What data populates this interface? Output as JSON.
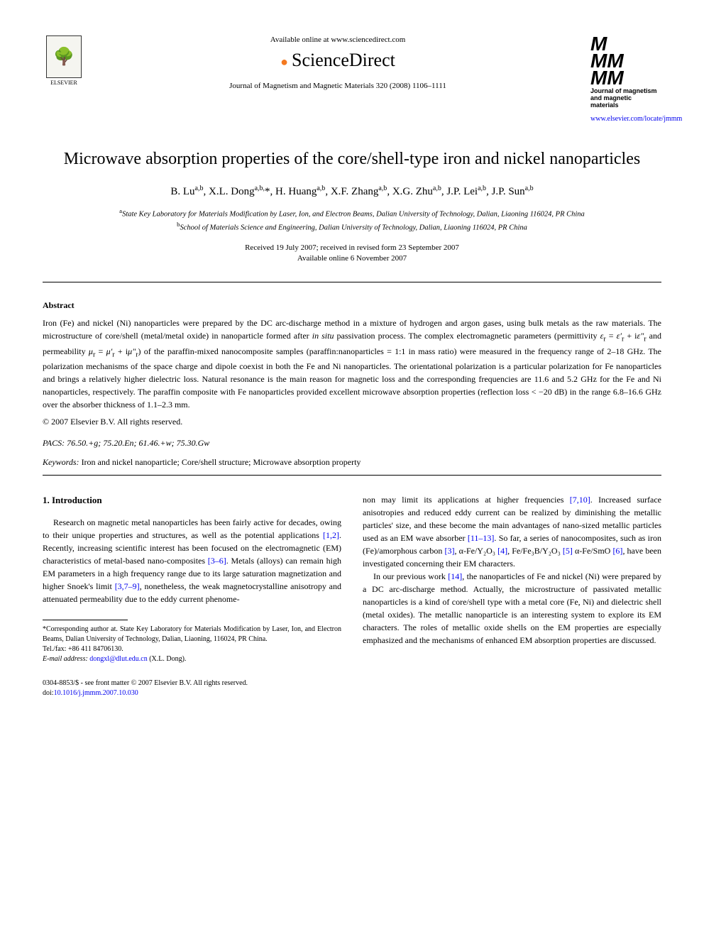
{
  "header": {
    "available_online": "Available online at www.sciencedirect.com",
    "sciencedirect": "ScienceDirect",
    "citation": "Journal of Magnetism and Magnetic Materials 320 (2008) 1106–1111",
    "elsevier": "ELSEVIER",
    "journal_mmm": "M\nMM\nMM",
    "journal_name": "Journal of magnetism and magnetic materials",
    "journal_url": "www.elsevier.com/locate/jmmm"
  },
  "title": "Microwave absorption properties of the core/shell-type iron and nickel nanoparticles",
  "authors_html": "B. Lu<sup>a,b</sup>, X.L. Dong<sup>a,b,*</sup>, H. Huang<sup>a,b</sup>, X.F. Zhang<sup>a,b</sup>, X.G. Zhu<sup>a,b</sup>, J.P. Lei<sup>a,b</sup>, J.P. Sun<sup>a,b</sup>",
  "affiliations": {
    "a": "State Key Laboratory for Materials Modification by Laser, Ion, and Electron Beams, Dalian University of Technology, Dalian, Liaoning 116024, PR China",
    "b": "School of Materials Science and Engineering, Dalian University of Technology, Dalian, Liaoning 116024, PR China"
  },
  "dates": {
    "received": "Received 19 July 2007; received in revised form 23 September 2007",
    "available": "Available online 6 November 2007"
  },
  "abstract": {
    "label": "Abstract",
    "text": "Iron (Fe) and nickel (Ni) nanoparticles were prepared by the DC arc-discharge method in a mixture of hydrogen and argon gases, using bulk metals as the raw materials. The microstructure of core/shell (metal/metal oxide) in nanoparticle formed after in situ passivation process. The complex electromagnetic parameters (permittivity εr = ε′r + iε″r and permeability μr = μ′r + iμ″r) of the paraffin-mixed nanocomposite samples (paraffin:nanoparticles = 1:1 in mass ratio) were measured in the frequency range of 2–18 GHz. The polarization mechanisms of the space charge and dipole coexist in both the Fe and Ni nanoparticles. The orientational polarization is a particular polarization for Fe nanoparticles and brings a relatively higher dielectric loss. Natural resonance is the main reason for magnetic loss and the corresponding frequencies are 11.6 and 5.2 GHz for the Fe and Ni nanoparticles, respectively. The paraffin composite with Fe nanoparticles provided excellent microwave absorption properties (reflection loss < −20 dB) in the range 6.8–16.6 GHz over the absorber thickness of 1.1–2.3 mm.",
    "copyright": "© 2007 Elsevier B.V. All rights reserved."
  },
  "pacs": "PACS: 76.50.+g; 75.20.En; 61.46.+w; 75.30.Gw",
  "keywords": {
    "label": "Keywords:",
    "text": "Iron and nickel nanoparticle; Core/shell structure; Microwave absorption property"
  },
  "intro": {
    "heading": "1. Introduction",
    "p1_part1": "Research on magnetic metal nanoparticles has been fairly active for decades, owing to their unique properties and structures, as well as the potential applications ",
    "p1_ref1": "[1,2]",
    "p1_part2": ". Recently, increasing scientific interest has been focused on the electromagnetic (EM) characteristics of metal-based nano-composites ",
    "p1_ref2": "[3–6]",
    "p1_part3": ". Metals (alloys) can remain high EM parameters in a high frequency range due to its large saturation magnetization and higher Snoek's limit ",
    "p1_ref3": "[3,7–9]",
    "p1_part4": ", nonetheless, the weak magnetocrystalline anisotropy and attenuated permeability due to the eddy current phenome-",
    "p2_part1": "non may limit its applications at higher frequencies ",
    "p2_ref1": "[7,10]",
    "p2_part2": ". Increased surface anisotropies and reduced eddy current can be realized by diminishing the metallic particles' size, and these become the main advantages of nano-sized metallic particles used as an EM wave absorber ",
    "p2_ref2": "[11–13]",
    "p2_part3": ". So far, a series of nanocomposites, such as iron (Fe)/amorphous carbon ",
    "p2_ref3": "[3]",
    "p2_part4": ", α-Fe/Y₂O₃ ",
    "p2_ref4": "[4]",
    "p2_part5": ", Fe/Fe₃B/Y₂O₃ ",
    "p2_ref5": "[5]",
    "p2_part6": " α-Fe/SmO ",
    "p2_ref6": "[6]",
    "p2_part7": ", have been investigated concerning their EM characters.",
    "p3_part1": "In our previous work ",
    "p3_ref1": "[14]",
    "p3_part2": ", the nanoparticles of Fe and nickel (Ni) were prepared by a DC arc-discharge method. Actually, the microstructure of passivated metallic nanoparticles is a kind of core/shell type with a metal core (Fe, Ni) and dielectric shell (metal oxides). The metallic nanoparticle is an interesting system to explore its EM characters. The roles of metallic oxide shells on the EM properties are especially emphasized and the mechanisms of enhanced EM absorption properties are discussed."
  },
  "footnote": {
    "corr": "*Corresponding author at. State Key Laboratory for Materials Modification by Laser, Ion, and Electron Beams, Dalian University of Technology, Dalian, Liaoning, 116024, PR China.",
    "tel": "Tel./fax: +86 411 84706130.",
    "email_label": "E-mail address:",
    "email": "dongxl@dlut.edu.cn",
    "email_name": "(X.L. Dong)."
  },
  "footer": {
    "line1": "0304-8853/$ - see front matter © 2007 Elsevier B.V. All rights reserved.",
    "doi_label": "doi:",
    "doi": "10.1016/j.jmmm.2007.10.030"
  },
  "colors": {
    "link": "#0000ee",
    "text": "#000000",
    "background": "#ffffff",
    "orange": "#f47920"
  }
}
